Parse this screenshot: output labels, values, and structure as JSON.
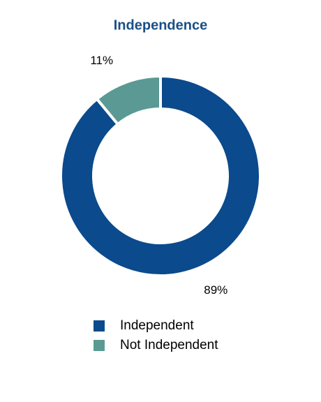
{
  "chart_data": {
    "type": "donut",
    "title": "Independence",
    "categories": [
      "Independent",
      "Not Independent"
    ],
    "values": [
      89,
      11
    ],
    "value_labels": [
      "89%",
      "11%"
    ],
    "colors": [
      "#0b4a8c",
      "#5b9a94"
    ],
    "legend": "bottom"
  }
}
